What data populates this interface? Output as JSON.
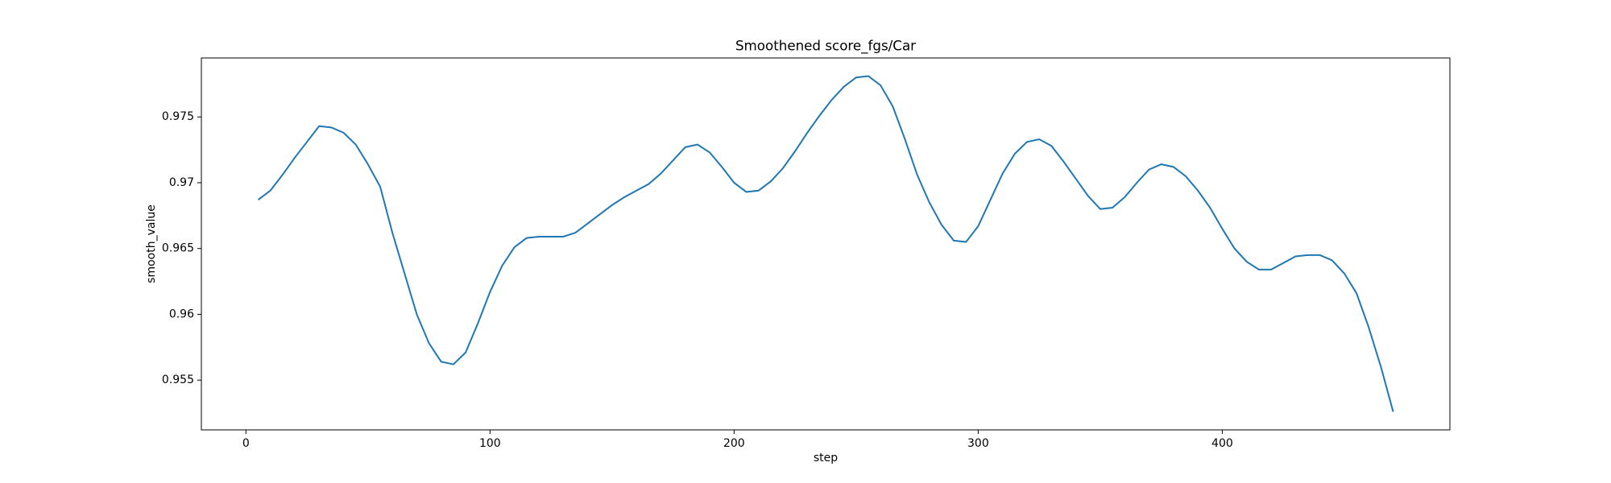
{
  "chart_data": {
    "type": "line",
    "title": "Smoothened score_fgs/Car",
    "x_label": "step",
    "y_label": "smooth_value",
    "x": [
      5,
      10,
      15,
      20,
      25,
      30,
      35,
      40,
      45,
      50,
      55,
      60,
      65,
      70,
      75,
      80,
      85,
      90,
      95,
      100,
      105,
      110,
      115,
      120,
      125,
      130,
      135,
      140,
      145,
      150,
      155,
      160,
      165,
      170,
      175,
      180,
      185,
      190,
      195,
      200,
      205,
      210,
      215,
      220,
      225,
      230,
      235,
      240,
      245,
      250,
      255,
      260,
      265,
      270,
      275,
      280,
      285,
      290,
      295,
      300,
      305,
      310,
      315,
      320,
      325,
      330,
      335,
      340,
      345,
      350,
      355,
      360,
      365,
      370,
      375,
      380,
      385,
      390,
      395,
      400,
      405,
      410,
      415,
      420,
      425,
      430,
      435,
      440,
      445,
      450,
      455,
      460,
      465,
      470
    ],
    "series": [
      {
        "name": "smooth_value",
        "color": "#1f77b4",
        "values": [
          0.9687,
          0.9694,
          0.9706,
          0.9719,
          0.9731,
          0.9743,
          0.9742,
          0.9738,
          0.9729,
          0.9714,
          0.9697,
          0.9662,
          0.9631,
          0.96,
          0.9578,
          0.9564,
          0.9562,
          0.9571,
          0.9593,
          0.9617,
          0.9637,
          0.9651,
          0.9658,
          0.9659,
          0.9659,
          0.9659,
          0.9662,
          0.9669,
          0.9676,
          0.9683,
          0.9689,
          0.9694,
          0.9699,
          0.9707,
          0.9717,
          0.9727,
          0.9729,
          0.9723,
          0.9712,
          0.97,
          0.9693,
          0.9694,
          0.9701,
          0.9711,
          0.9724,
          0.9738,
          0.9751,
          0.9763,
          0.9773,
          0.978,
          0.9781,
          0.9774,
          0.9758,
          0.9733,
          0.9706,
          0.9685,
          0.9668,
          0.9656,
          0.9655,
          0.9667,
          0.9687,
          0.9707,
          0.9722,
          0.9731,
          0.9733,
          0.9728,
          0.9716,
          0.9703,
          0.969,
          0.968,
          0.9681,
          0.9689,
          0.97,
          0.971,
          0.9714,
          0.9712,
          0.9705,
          0.9694,
          0.9681,
          0.9665,
          0.965,
          0.964,
          0.9634,
          0.9634,
          0.9639,
          0.9644,
          0.9645,
          0.9645,
          0.9641,
          0.9631,
          0.9616,
          0.959,
          0.956,
          0.9526
        ]
      }
    ],
    "xlim": [
      -18.25,
      493.25
    ],
    "xticks": [
      0,
      100,
      200,
      300,
      400
    ],
    "ylim": [
      0.95122,
      0.97948
    ],
    "yticks": [
      0.955,
      0.96,
      0.965,
      0.97,
      0.975
    ],
    "grid": false
  }
}
